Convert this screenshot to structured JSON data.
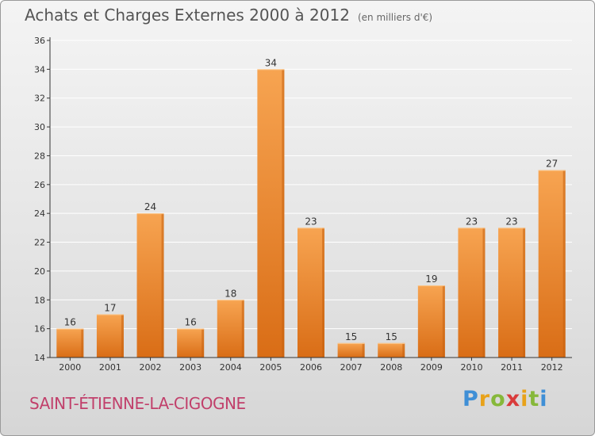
{
  "header": {
    "title": "Achats et Charges Externes 2000 à 2012",
    "subtitle": "(en milliers d'€)"
  },
  "footer": {
    "commune": "SAINT-ÉTIENNE-LA-CIGOGNE",
    "logo_letters": [
      "P",
      "r",
      "o",
      "x",
      "i",
      "t",
      "i"
    ],
    "logo_colors": [
      "#3f8fd6",
      "#e8a21a",
      "#86b83a",
      "#d93b3b",
      "#e8a21a",
      "#86b83a",
      "#3f8fd6"
    ]
  },
  "colors": {
    "bar_top": "#f7a451",
    "bar_bottom": "#d96d16",
    "bar_side": "#c5600f",
    "grid": "#ffffff",
    "axis": "#333333"
  },
  "chart_data": {
    "type": "bar",
    "title": "Achats et Charges Externes 2000 à 2012",
    "subtitle": "(en milliers d'€)",
    "categories": [
      "2000",
      "2001",
      "2002",
      "2003",
      "2004",
      "2005",
      "2006",
      "2007",
      "2008",
      "2009",
      "2010",
      "2011",
      "2012"
    ],
    "values": [
      16,
      17,
      24,
      16,
      18,
      34,
      23,
      15,
      15,
      19,
      23,
      23,
      27
    ],
    "ylim": [
      14,
      36
    ],
    "yticks": [
      14,
      16,
      18,
      20,
      22,
      24,
      26,
      28,
      30,
      32,
      34,
      36
    ],
    "grid": true,
    "data_labels": true
  }
}
